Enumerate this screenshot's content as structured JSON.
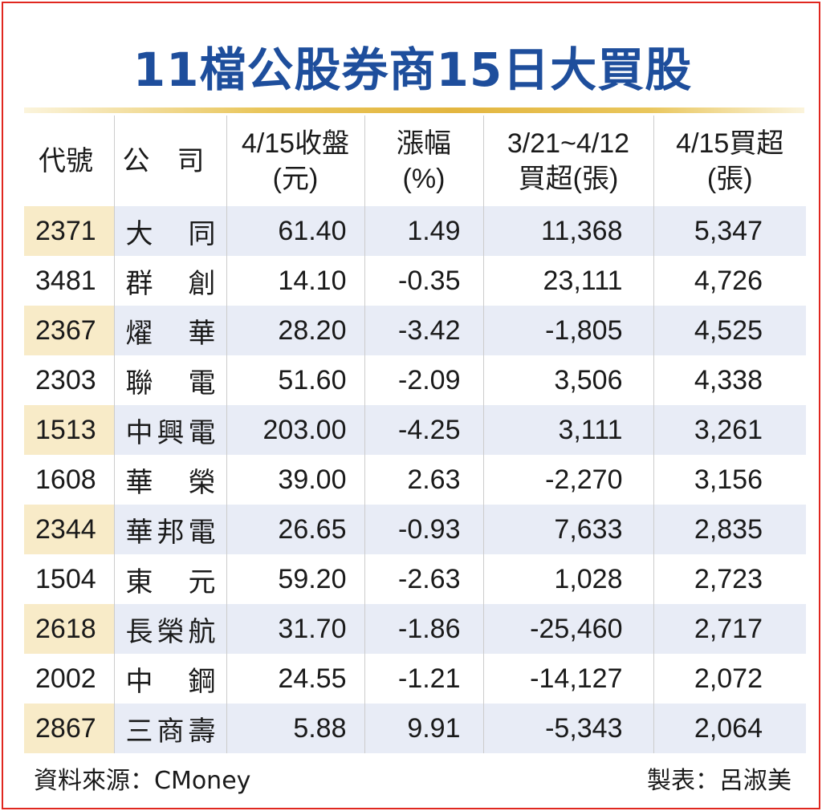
{
  "title": "11檔公股券商15日大買股",
  "headers": {
    "code": "代號",
    "name": "公司",
    "close": [
      "4/15收盤",
      "(元)"
    ],
    "change": [
      "漲幅",
      "(%)"
    ],
    "prev_buy": [
      "3/21~4/12",
      "買超(張)"
    ],
    "today_buy": [
      "4/15買超",
      "(張)"
    ]
  },
  "rows": [
    {
      "code": "2371",
      "name": "大同",
      "close": "61.40",
      "change": "1.49",
      "prev_buy": "11,368",
      "today_buy": "5,347"
    },
    {
      "code": "3481",
      "name": "群創",
      "close": "14.10",
      "change": "-0.35",
      "prev_buy": "23,111",
      "today_buy": "4,726"
    },
    {
      "code": "2367",
      "name": "燿華",
      "close": "28.20",
      "change": "-3.42",
      "prev_buy": "-1,805",
      "today_buy": "4,525"
    },
    {
      "code": "2303",
      "name": "聯電",
      "close": "51.60",
      "change": "-2.09",
      "prev_buy": "3,506",
      "today_buy": "4,338"
    },
    {
      "code": "1513",
      "name": "中興電",
      "close": "203.00",
      "change": "-4.25",
      "prev_buy": "3,111",
      "today_buy": "3,261"
    },
    {
      "code": "1608",
      "name": "華榮",
      "close": "39.00",
      "change": "2.63",
      "prev_buy": "-2,270",
      "today_buy": "3,156"
    },
    {
      "code": "2344",
      "name": "華邦電",
      "close": "26.65",
      "change": "-0.93",
      "prev_buy": "7,633",
      "today_buy": "2,835"
    },
    {
      "code": "1504",
      "name": "東元",
      "close": "59.20",
      "change": "-2.63",
      "prev_buy": "1,028",
      "today_buy": "2,723"
    },
    {
      "code": "2618",
      "name": "長榮航",
      "close": "31.70",
      "change": "-1.86",
      "prev_buy": "-25,460",
      "today_buy": "2,717"
    },
    {
      "code": "2002",
      "name": "中鋼",
      "close": "24.55",
      "change": "-1.21",
      "prev_buy": "-14,127",
      "today_buy": "2,072"
    },
    {
      "code": "2867",
      "name": "三商壽",
      "close": "5.88",
      "change": "9.91",
      "prev_buy": "-5,343",
      "today_buy": "2,064"
    }
  ],
  "footer": {
    "source": "資料來源：CMoney",
    "author": "製表：呂淑美"
  }
}
